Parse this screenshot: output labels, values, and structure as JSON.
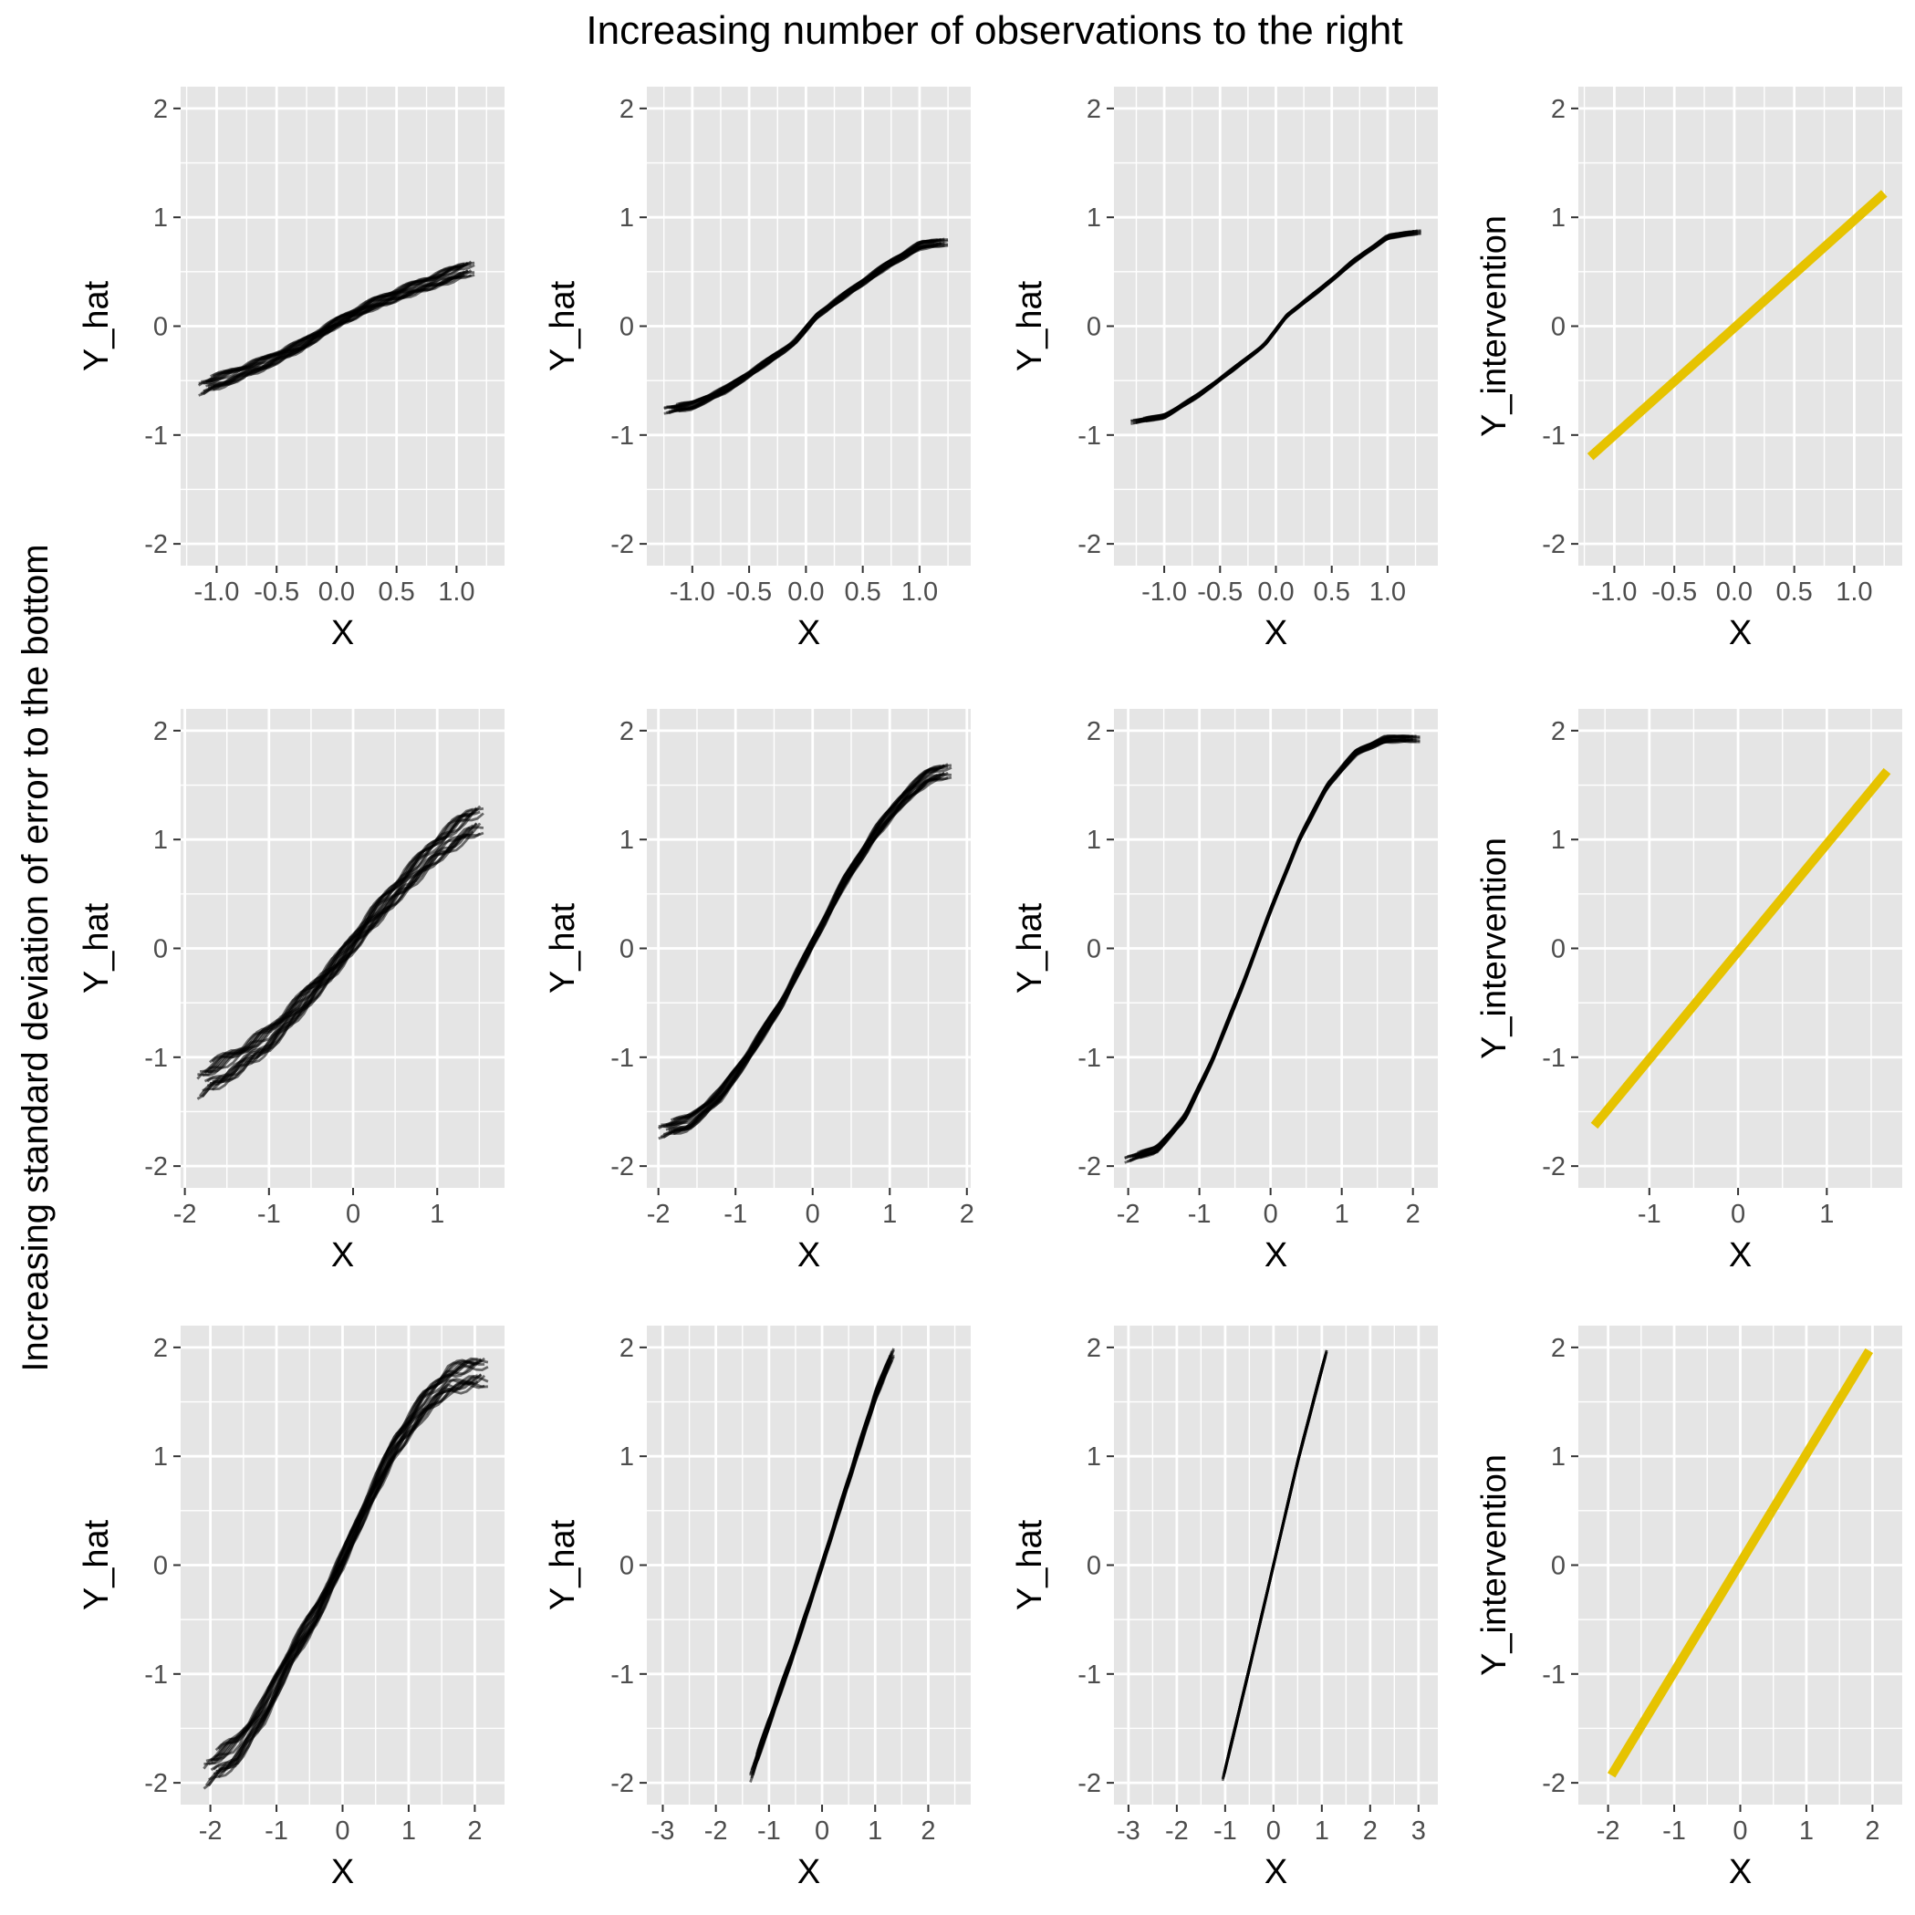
{
  "figure": {
    "title": "Increasing number of observations to the right",
    "row_label": "Increasing standard deviation of error to the bottom",
    "panel_bg": "#e5e5e5",
    "grid_color": "#ffffff",
    "estimate_color": "#000000",
    "intervention_color": "#e6c300"
  },
  "chart_data": [
    {
      "type": "line",
      "panel": "row1-col1",
      "xlabel": "X",
      "ylabel": "Y_hat",
      "xlim": [
        -1.3,
        1.4
      ],
      "ylim": [
        -2.2,
        2.2
      ],
      "xticks": [
        -1.0,
        -0.5,
        0.0,
        0.5,
        1.0
      ],
      "xtick_labels": [
        "-1.0",
        "-0.5",
        "0.0",
        "0.5",
        "1.0"
      ],
      "yticks": [
        -2,
        -1,
        0,
        1,
        2
      ],
      "ytick_labels": [
        "-2",
        "-1",
        "0",
        "1",
        "2"
      ],
      "series": [
        {
          "kind": "bundle",
          "x_range": [
            -1.15,
            1.15
          ],
          "points": [
            [
              -1.15,
              -0.57
            ],
            [
              -0.9,
              -0.47
            ],
            [
              -0.6,
              -0.34
            ],
            [
              -0.3,
              -0.18
            ],
            [
              0.0,
              0.03
            ],
            [
              0.3,
              0.2
            ],
            [
              0.6,
              0.33
            ],
            [
              0.9,
              0.45
            ],
            [
              1.15,
              0.55
            ]
          ],
          "spread": 0.06,
          "count": 20
        }
      ]
    },
    {
      "type": "line",
      "panel": "row1-col2",
      "xlabel": "X",
      "ylabel": "Y_hat",
      "xlim": [
        -1.4,
        1.45
      ],
      "ylim": [
        -2.2,
        2.2
      ],
      "xticks": [
        -1.0,
        -0.5,
        0.0,
        0.5,
        1.0
      ],
      "xtick_labels": [
        "-1.0",
        "-0.5",
        "0.0",
        "0.5",
        "1.0"
      ],
      "yticks": [
        -2,
        -1,
        0,
        1,
        2
      ],
      "ytick_labels": [
        "-2",
        "-1",
        "0",
        "1",
        "2"
      ],
      "series": [
        {
          "kind": "bundle",
          "x_range": [
            -1.25,
            1.25
          ],
          "points": [
            [
              -1.25,
              -0.77
            ],
            [
              -1.0,
              -0.73
            ],
            [
              -0.7,
              -0.58
            ],
            [
              -0.4,
              -0.37
            ],
            [
              -0.1,
              -0.15
            ],
            [
              0.1,
              0.1
            ],
            [
              0.4,
              0.33
            ],
            [
              0.7,
              0.55
            ],
            [
              1.0,
              0.74
            ],
            [
              1.25,
              0.78
            ]
          ],
          "spread": 0.03,
          "count": 20
        }
      ]
    },
    {
      "type": "line",
      "panel": "row1-col3",
      "xlabel": "X",
      "ylabel": "Y_hat",
      "xlim": [
        -1.45,
        1.45
      ],
      "ylim": [
        -2.2,
        2.2
      ],
      "xticks": [
        -1.0,
        -0.5,
        0.0,
        0.5,
        1.0
      ],
      "xtick_labels": [
        "-1.0",
        "-0.5",
        "0.0",
        "0.5",
        "1.0"
      ],
      "yticks": [
        -2,
        -1,
        0,
        1,
        2
      ],
      "ytick_labels": [
        "-2",
        "-1",
        "0",
        "1",
        "2"
      ],
      "series": [
        {
          "kind": "bundle",
          "x_range": [
            -1.3,
            1.3
          ],
          "points": [
            [
              -1.3,
              -0.88
            ],
            [
              -1.0,
              -0.83
            ],
            [
              -0.7,
              -0.64
            ],
            [
              -0.4,
              -0.41
            ],
            [
              -0.1,
              -0.17
            ],
            [
              0.1,
              0.1
            ],
            [
              0.4,
              0.34
            ],
            [
              0.7,
              0.6
            ],
            [
              1.0,
              0.82
            ],
            [
              1.3,
              0.87
            ]
          ],
          "spread": 0.015,
          "count": 20
        }
      ]
    },
    {
      "type": "line",
      "panel": "row1-col4",
      "xlabel": "X",
      "ylabel": "Y_intervention",
      "xlim": [
        -1.3,
        1.4
      ],
      "ylim": [
        -2.2,
        2.2
      ],
      "xticks": [
        -1.0,
        -0.5,
        0.0,
        0.5,
        1.0
      ],
      "xtick_labels": [
        "-1.0",
        "-0.5",
        "0.0",
        "0.5",
        "1.0"
      ],
      "yticks": [
        -2,
        -1,
        0,
        1,
        2
      ],
      "ytick_labels": [
        "-2",
        "-1",
        "0",
        "1",
        "2"
      ],
      "series": [
        {
          "kind": "intervention",
          "points": [
            [
              -1.2,
              -1.2
            ],
            [
              1.25,
              1.22
            ]
          ]
        }
      ]
    },
    {
      "type": "line",
      "panel": "row2-col1",
      "xlabel": "X",
      "ylabel": "Y_hat",
      "xlim": [
        -2.05,
        1.8
      ],
      "ylim": [
        -2.2,
        2.2
      ],
      "xticks": [
        -2,
        -1,
        0,
        1
      ],
      "xtick_labels": [
        "-2",
        "-1",
        "0",
        "1"
      ],
      "yticks": [
        -2,
        -1,
        0,
        1,
        2
      ],
      "ytick_labels": [
        "-2",
        "-1",
        "0",
        "1",
        "2"
      ],
      "series": [
        {
          "kind": "bundle",
          "x_range": [
            -1.85,
            1.55
          ],
          "points": [
            [
              -1.85,
              -1.25
            ],
            [
              -1.4,
              -1.05
            ],
            [
              -1.0,
              -0.83
            ],
            [
              -0.6,
              -0.5
            ],
            [
              -0.2,
              -0.15
            ],
            [
              0.2,
              0.25
            ],
            [
              0.6,
              0.6
            ],
            [
              1.0,
              0.92
            ],
            [
              1.3,
              1.1
            ],
            [
              1.55,
              1.22
            ]
          ],
          "spread": 0.12,
          "count": 20
        }
      ]
    },
    {
      "type": "line",
      "panel": "row2-col2",
      "xlabel": "X",
      "ylabel": "Y_hat",
      "xlim": [
        -2.15,
        2.05
      ],
      "ylim": [
        -2.2,
        2.2
      ],
      "xticks": [
        -2,
        -1,
        0,
        1,
        2
      ],
      "xtick_labels": [
        "-2",
        "-1",
        "0",
        "1",
        "2"
      ],
      "yticks": [
        -2,
        -1,
        0,
        1,
        2
      ],
      "ytick_labels": [
        "-2",
        "-1",
        "0",
        "1",
        "2"
      ],
      "series": [
        {
          "kind": "bundle",
          "x_range": [
            -2.0,
            1.8
          ],
          "points": [
            [
              -2.0,
              -1.68
            ],
            [
              -1.6,
              -1.6
            ],
            [
              -1.2,
              -1.35
            ],
            [
              -0.8,
              -0.95
            ],
            [
              -0.4,
              -0.5
            ],
            [
              0.0,
              0.05
            ],
            [
              0.4,
              0.6
            ],
            [
              0.8,
              1.05
            ],
            [
              1.2,
              1.4
            ],
            [
              1.5,
              1.58
            ],
            [
              1.8,
              1.65
            ]
          ],
          "spread": 0.06,
          "count": 20
        }
      ]
    },
    {
      "type": "line",
      "panel": "row2-col3",
      "xlabel": "X",
      "ylabel": "Y_hat",
      "xlim": [
        -2.2,
        2.35
      ],
      "ylim": [
        -2.2,
        2.2
      ],
      "xticks": [
        -2,
        -1,
        0,
        1,
        2
      ],
      "xtick_labels": [
        "-2",
        "-1",
        "0",
        "1",
        "2"
      ],
      "yticks": [
        -2,
        -1,
        0,
        1,
        2
      ],
      "ytick_labels": [
        "-2",
        "-1",
        "0",
        "1",
        "2"
      ],
      "series": [
        {
          "kind": "bundle",
          "x_range": [
            -2.05,
            2.1
          ],
          "points": [
            [
              -2.05,
              -1.94
            ],
            [
              -1.6,
              -1.85
            ],
            [
              -1.2,
              -1.55
            ],
            [
              -0.8,
              -1.0
            ],
            [
              -0.4,
              -0.35
            ],
            [
              0.0,
              0.35
            ],
            [
              0.4,
              1.0
            ],
            [
              0.8,
              1.5
            ],
            [
              1.2,
              1.8
            ],
            [
              1.6,
              1.92
            ],
            [
              2.1,
              1.93
            ]
          ],
          "spread": 0.025,
          "count": 20
        }
      ]
    },
    {
      "type": "line",
      "panel": "row2-col4",
      "xlabel": "X",
      "ylabel": "Y_intervention",
      "xlim": [
        -1.8,
        1.85
      ],
      "ylim": [
        -2.2,
        2.2
      ],
      "xticks": [
        -1,
        0,
        1
      ],
      "xtick_labels": [
        "-1",
        "0",
        "1"
      ],
      "yticks": [
        -2,
        -1,
        0,
        1,
        2
      ],
      "ytick_labels": [
        "-2",
        "-1",
        "0",
        "1",
        "2"
      ],
      "series": [
        {
          "kind": "intervention",
          "points": [
            [
              -1.62,
              -1.63
            ],
            [
              1.68,
              1.63
            ]
          ]
        }
      ]
    },
    {
      "type": "line",
      "panel": "row3-col1",
      "xlabel": "X",
      "ylabel": "Y_hat",
      "xlim": [
        -2.45,
        2.45
      ],
      "ylim": [
        -2.2,
        2.2
      ],
      "xticks": [
        -2,
        -1,
        0,
        1,
        2
      ],
      "xtick_labels": [
        "-2",
        "-1",
        "0",
        "1",
        "2"
      ],
      "yticks": [
        -2,
        -1,
        0,
        1,
        2
      ],
      "ytick_labels": [
        "-2",
        "-1",
        "0",
        "1",
        "2"
      ],
      "series": [
        {
          "kind": "bundle",
          "x_range": [
            -2.1,
            2.2
          ],
          "points": [
            [
              -2.1,
              -1.92
            ],
            [
              -1.6,
              -1.7
            ],
            [
              -1.2,
              -1.35
            ],
            [
              -0.8,
              -0.85
            ],
            [
              -0.4,
              -0.45
            ],
            [
              0.0,
              0.05
            ],
            [
              0.4,
              0.6
            ],
            [
              0.8,
              1.1
            ],
            [
              1.2,
              1.45
            ],
            [
              1.6,
              1.7
            ],
            [
              2.2,
              1.8
            ]
          ],
          "spread": 0.12,
          "count": 20
        }
      ]
    },
    {
      "type": "line",
      "panel": "row3-col2",
      "xlabel": "X",
      "ylabel": "Y_hat",
      "xlim": [
        -3.3,
        2.8
      ],
      "ylim": [
        -2.2,
        2.2
      ],
      "xticks": [
        -3,
        -2,
        -1,
        0,
        1,
        2
      ],
      "xtick_labels": [
        "-3",
        "-2",
        "-1",
        "0",
        "1",
        "2"
      ],
      "yticks": [
        -2,
        -1,
        0,
        1,
        2
      ],
      "ytick_labels": [
        "-2",
        "-1",
        "0",
        "1",
        "2"
      ],
      "series": [
        {
          "kind": "bundle",
          "x_range": [
            -1.35,
            1.35
          ],
          "points": [
            [
              -1.35,
              -1.95
            ],
            [
              -1.0,
              -1.45
            ],
            [
              -0.5,
              -0.75
            ],
            [
              0.0,
              0.0
            ],
            [
              0.5,
              0.78
            ],
            [
              1.0,
              1.55
            ],
            [
              1.35,
              1.97
            ]
          ],
          "spread": 0.04,
          "count": 20
        }
      ]
    },
    {
      "type": "line",
      "panel": "row3-col3",
      "xlabel": "X",
      "ylabel": "Y_hat",
      "xlim": [
        -3.3,
        3.4
      ],
      "ylim": [
        -2.2,
        2.2
      ],
      "xticks": [
        -3,
        -2,
        -1,
        0,
        1,
        2,
        3
      ],
      "xtick_labels": [
        "-3",
        "-2",
        "-1",
        "0",
        "1",
        "2",
        "3"
      ],
      "yticks": [
        -2,
        -1,
        0,
        1,
        2
      ],
      "ytick_labels": [
        "-2",
        "-1",
        "0",
        "1",
        "2"
      ],
      "series": [
        {
          "kind": "bundle",
          "x_range": [
            -1.05,
            1.1
          ],
          "points": [
            [
              -1.05,
              -1.97
            ],
            [
              -0.5,
              -0.95
            ],
            [
              0.0,
              0.0
            ],
            [
              0.5,
              0.95
            ],
            [
              1.1,
              1.97
            ]
          ],
          "spread": 0.01,
          "count": 20
        }
      ]
    },
    {
      "type": "line",
      "panel": "row3-col4",
      "xlabel": "X",
      "ylabel": "Y_intervention",
      "xlim": [
        -2.45,
        2.45
      ],
      "ylim": [
        -2.2,
        2.2
      ],
      "xticks": [
        -2,
        -1,
        0,
        1,
        2
      ],
      "xtick_labels": [
        "-2",
        "-1",
        "0",
        "1",
        "2"
      ],
      "yticks": [
        -2,
        -1,
        0,
        1,
        2
      ],
      "ytick_labels": [
        "-2",
        "-1",
        "0",
        "1",
        "2"
      ],
      "series": [
        {
          "kind": "intervention",
          "points": [
            [
              -1.95,
              -1.93
            ],
            [
              1.95,
              1.97
            ]
          ]
        }
      ]
    }
  ]
}
